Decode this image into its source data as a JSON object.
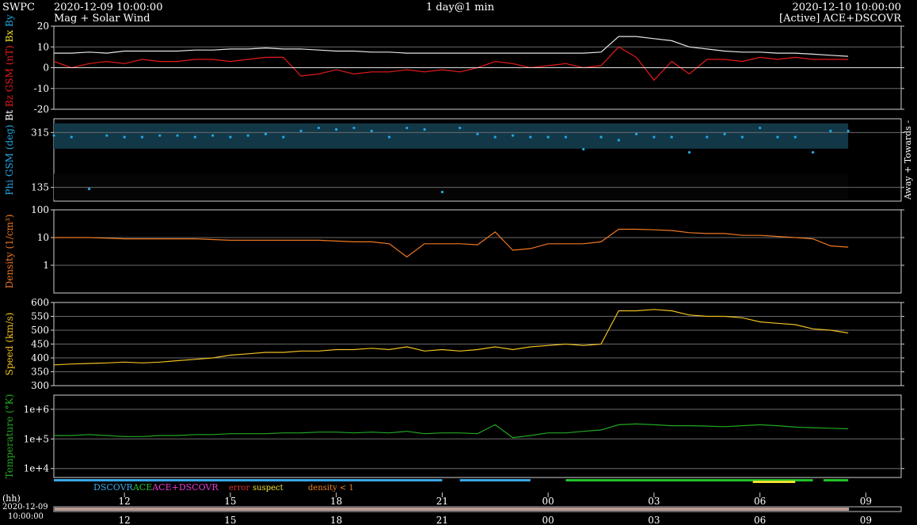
{
  "header": {
    "brand": "SWPC",
    "start_time": "2020-12-09 10:00:00",
    "subtitle": "Mag + Solar Wind",
    "span": "1 day@1 min",
    "end_time": "2020-12-10 10:00:00",
    "source": "[Active] ACE+DSCOVR"
  },
  "legend": {
    "dscovr": "DSCOVR",
    "ace": "ACE",
    "ace_dscovr": "ACE+DSCOVR",
    "error": "error",
    "suspect": "suspect",
    "density_lt1": "density < 1",
    "colors": {
      "dscovr": "#3aa7e6",
      "ace": "#22c22a",
      "ace_dscovr": "#e63ad7",
      "error": "#e03030",
      "suspect": "#f0e030",
      "density_lt1": "#f08020"
    }
  },
  "time_axis": {
    "unit_label": "(hh)",
    "start_label_date": "2020-12-09",
    "start_label_time": "10:00:00",
    "hours_from_start": [
      2,
      5,
      8,
      11,
      14,
      17,
      20,
      23
    ],
    "tick_labels": [
      "12",
      "15",
      "18",
      "21",
      "00",
      "03",
      "06",
      "09"
    ],
    "range_hours": [
      0,
      24
    ],
    "data_end_hours": 22.5
  },
  "right_label": "Away + Towards -",
  "chart_data": [
    {
      "type": "line",
      "ylabel_parts": [
        "Bt",
        "Bz GSM (nT)",
        "Bx",
        "By"
      ],
      "ylim": [
        -20,
        20
      ],
      "yticks": [
        -20,
        -10,
        0,
        10,
        20
      ],
      "ytick_labels": [
        "-20",
        "-10",
        "0",
        "10",
        "20"
      ],
      "grid": true,
      "series": [
        {
          "name": "Bt",
          "color": "#e6e6e6",
          "x": [
            0,
            0.5,
            1,
            1.5,
            2,
            2.5,
            3,
            3.5,
            4,
            4.5,
            5,
            5.5,
            6,
            6.5,
            7,
            7.5,
            8,
            8.5,
            9,
            9.5,
            10,
            10.5,
            11,
            11.5,
            12,
            12.5,
            13,
            13.5,
            14,
            14.5,
            15,
            15.5,
            16,
            16.5,
            17,
            17.5,
            18,
            18.5,
            19,
            19.5,
            20,
            20.5,
            21,
            21.5,
            22,
            22.5
          ],
          "y": [
            7,
            7,
            7.5,
            7,
            8,
            8,
            8,
            8,
            8.5,
            8.5,
            9,
            9,
            9.5,
            9,
            9,
            8.5,
            8,
            8,
            7.5,
            7.5,
            7,
            7,
            7,
            7,
            7,
            7,
            7,
            7,
            7,
            7,
            7,
            7.5,
            15,
            15,
            14,
            13,
            10,
            9,
            8,
            7.5,
            7.5,
            7,
            7,
            6.5,
            6,
            5.5
          ]
        },
        {
          "name": "Bz GSM",
          "color": "#e51b1b",
          "x": [
            0,
            0.5,
            1,
            1.5,
            2,
            2.5,
            3,
            3.5,
            4,
            4.5,
            5,
            5.5,
            6,
            6.5,
            7,
            7.5,
            8,
            8.5,
            9,
            9.5,
            10,
            10.5,
            11,
            11.5,
            12,
            12.5,
            13,
            13.5,
            14,
            14.5,
            15,
            15.5,
            16,
            16.5,
            17,
            17.5,
            18,
            18.5,
            19,
            19.5,
            20,
            20.5,
            21,
            21.5,
            22,
            22.5
          ],
          "y": [
            3,
            0,
            2,
            3,
            2,
            4,
            3,
            3,
            4,
            4,
            3,
            4,
            5,
            5,
            -4,
            -3,
            -1,
            -3,
            -2,
            -2,
            -1,
            -2,
            -1,
            -2,
            0,
            3,
            2,
            0,
            1,
            2,
            0,
            1,
            10,
            5,
            -6,
            3,
            -3,
            4,
            4,
            3,
            5,
            4,
            5,
            4,
            4,
            4
          ]
        }
      ]
    },
    {
      "type": "scatter",
      "ylabel": "Phi GSM (deg)",
      "ylim": [
        90,
        360
      ],
      "yticks": [
        135,
        315
      ],
      "ytick_labels": [
        "135",
        "315"
      ],
      "grid": true,
      "series": [
        {
          "name": "Phi GSM",
          "color": "#22a9e6",
          "x": [
            0,
            0.5,
            1,
            1.5,
            2,
            2.5,
            3,
            3.5,
            4,
            4.5,
            5,
            5.5,
            6,
            6.5,
            7,
            7.5,
            8,
            8.5,
            9,
            9.5,
            10,
            10.5,
            11,
            11.5,
            12,
            12.5,
            13,
            13.5,
            14,
            14.5,
            15,
            15.5,
            16,
            16.5,
            17,
            17.5,
            18,
            18.5,
            19,
            19.5,
            20,
            20.5,
            21,
            21.5,
            22,
            22.5
          ],
          "y": [
            305,
            300,
            130,
            305,
            300,
            300,
            305,
            305,
            300,
            305,
            300,
            305,
            310,
            300,
            320,
            330,
            325,
            330,
            320,
            300,
            330,
            325,
            120,
            330,
            310,
            300,
            305,
            300,
            300,
            300,
            260,
            300,
            290,
            310,
            300,
            300,
            250,
            300,
            310,
            300,
            330,
            300,
            300,
            250,
            320,
            320
          ]
        }
      ]
    },
    {
      "type": "line",
      "ylabel": "Density (1/cm³)",
      "scale": "log",
      "ylim": [
        0.1,
        100
      ],
      "yticks": [
        1,
        10,
        100
      ],
      "ytick_labels": [
        "1",
        "10",
        "100"
      ],
      "grid": true,
      "series": [
        {
          "name": "Density",
          "color": "#f07820",
          "x": [
            0,
            0.5,
            1,
            1.5,
            2,
            2.5,
            3,
            3.5,
            4,
            4.5,
            5,
            5.5,
            6,
            6.5,
            7,
            7.5,
            8,
            8.5,
            9,
            9.5,
            10,
            10.5,
            11,
            11.5,
            12,
            12.5,
            13,
            13.5,
            14,
            14.5,
            15,
            15.5,
            16,
            16.5,
            17,
            17.5,
            18,
            18.5,
            19,
            19.5,
            20,
            20.5,
            21,
            21.5,
            22,
            22.5
          ],
          "y": [
            10,
            10,
            10,
            9.5,
            9,
            9,
            9,
            9,
            9,
            8.5,
            8,
            8,
            8,
            8,
            8,
            8,
            7.5,
            7,
            7,
            6,
            2,
            6,
            6,
            6,
            5.5,
            16,
            3.5,
            4,
            6,
            6,
            6,
            7,
            20,
            20,
            19,
            18,
            15,
            14,
            14,
            12,
            12,
            11,
            10,
            9,
            5,
            4.5
          ]
        }
      ]
    },
    {
      "type": "line",
      "ylabel": "Speed (km/s)",
      "ylim": [
        300,
        600
      ],
      "yticks": [
        300,
        350,
        400,
        450,
        500,
        550,
        600
      ],
      "ytick_labels": [
        "300",
        "350",
        "400",
        "450",
        "500",
        "550",
        "600"
      ],
      "grid": true,
      "series": [
        {
          "name": "Speed",
          "color": "#f0c020",
          "x": [
            0,
            0.5,
            1,
            1.5,
            2,
            2.5,
            3,
            3.5,
            4,
            4.5,
            5,
            5.5,
            6,
            6.5,
            7,
            7.5,
            8,
            8.5,
            9,
            9.5,
            10,
            10.5,
            11,
            11.5,
            12,
            12.5,
            13,
            13.5,
            14,
            14.5,
            15,
            15.5,
            16,
            16.5,
            17,
            17.5,
            18,
            18.5,
            19,
            19.5,
            20,
            20.5,
            21,
            21.5,
            22,
            22.5
          ],
          "y": [
            375,
            378,
            380,
            382,
            385,
            382,
            385,
            390,
            395,
            400,
            410,
            415,
            420,
            420,
            425,
            425,
            430,
            430,
            435,
            430,
            440,
            425,
            430,
            425,
            430,
            440,
            430,
            440,
            445,
            450,
            445,
            450,
            570,
            570,
            575,
            570,
            555,
            550,
            550,
            545,
            530,
            525,
            520,
            505,
            500,
            490
          ]
        }
      ]
    },
    {
      "type": "line",
      "ylabel": "Temperature (°K)",
      "scale": "log",
      "ylim": [
        5000,
        3000000
      ],
      "yticks": [
        10000,
        100000,
        1000000
      ],
      "ytick_labels": [
        "1e+4",
        "1e+5",
        "1e+6"
      ],
      "grid": true,
      "series": [
        {
          "name": "Temperature",
          "color": "#22a822",
          "x": [
            0,
            0.5,
            1,
            1.5,
            2,
            2.5,
            3,
            3.5,
            4,
            4.5,
            5,
            5.5,
            6,
            6.5,
            7,
            7.5,
            8,
            8.5,
            9,
            9.5,
            10,
            10.5,
            11,
            11.5,
            12,
            12.5,
            13,
            13.5,
            14,
            14.5,
            15,
            15.5,
            16,
            16.5,
            17,
            17.5,
            18,
            18.5,
            19,
            19.5,
            20,
            20.5,
            21,
            21.5,
            22,
            22.5
          ],
          "y": [
            130000,
            130000,
            140000,
            130000,
            120000,
            120000,
            130000,
            130000,
            140000,
            140000,
            150000,
            150000,
            150000,
            160000,
            160000,
            170000,
            170000,
            160000,
            170000,
            160000,
            180000,
            150000,
            160000,
            160000,
            150000,
            300000,
            110000,
            130000,
            160000,
            160000,
            180000,
            200000,
            300000,
            320000,
            300000,
            280000,
            280000,
            270000,
            260000,
            280000,
            300000,
            280000,
            250000,
            240000,
            230000,
            220000
          ]
        }
      ]
    }
  ]
}
